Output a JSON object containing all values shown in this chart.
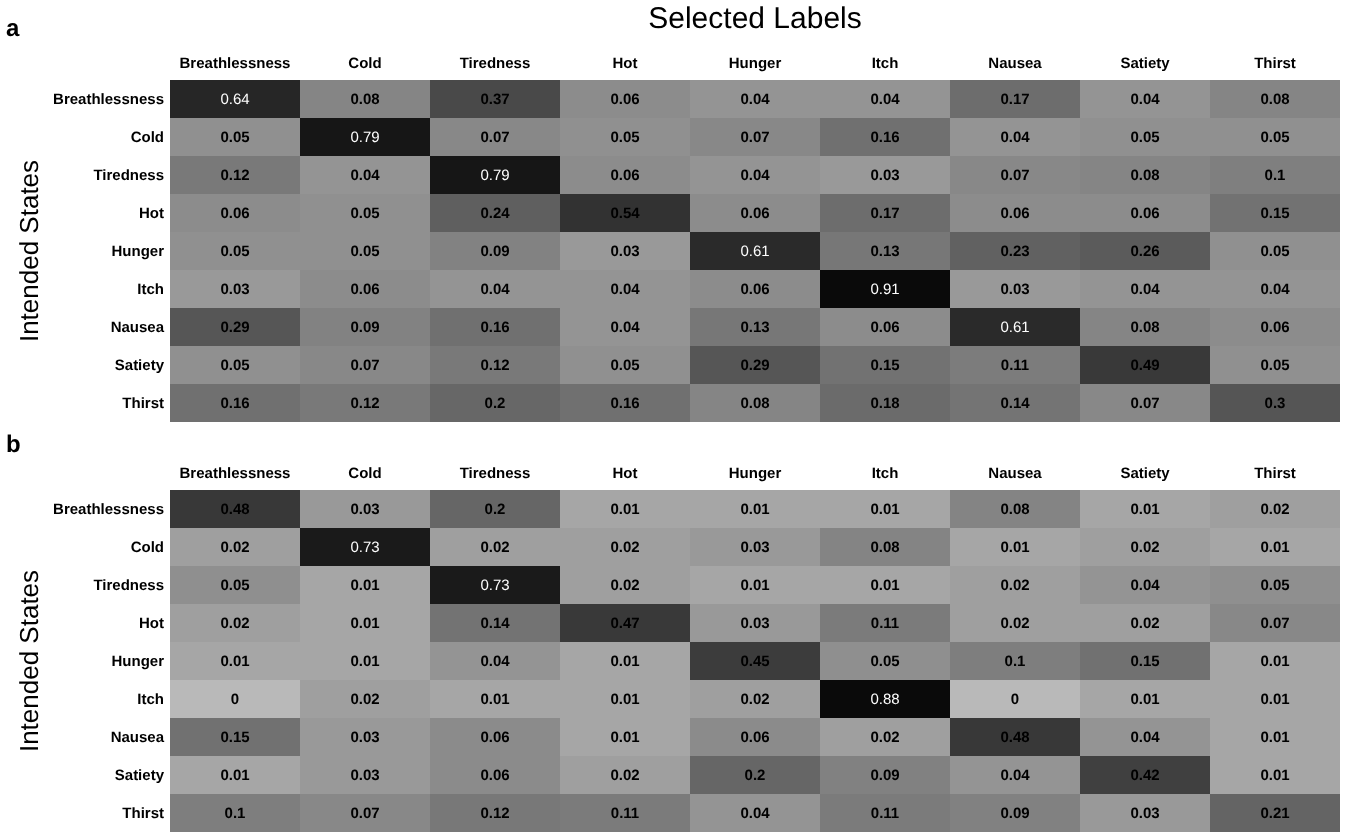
{
  "chart_data": [
    {
      "type": "heatmap",
      "title": "Selected Labels",
      "ylabel": "Intended States",
      "annotations": [
        "a"
      ],
      "categories": [
        "Breathlessness",
        "Cold",
        "Tiredness",
        "Hot",
        "Hunger",
        "Itch",
        "Nausea",
        "Satiety",
        "Thirst"
      ],
      "y_categories": [
        "Breathlessness",
        "Cold",
        "Tiredness",
        "Hot",
        "Hunger",
        "Itch",
        "Nausea",
        "Satiety",
        "Thirst"
      ],
      "data_labels": true,
      "cells": [
        [
          0.64,
          0.08,
          0.37,
          0.06,
          0.04,
          0.04,
          0.17,
          0.04,
          0.08
        ],
        [
          0.05,
          0.79,
          0.07,
          0.05,
          0.07,
          0.16,
          0.04,
          0.05,
          0.05
        ],
        [
          0.12,
          0.04,
          0.79,
          0.06,
          0.04,
          0.03,
          0.07,
          0.08,
          0.1
        ],
        [
          0.06,
          0.05,
          0.24,
          0.54,
          0.06,
          0.17,
          0.06,
          0.06,
          0.15
        ],
        [
          0.05,
          0.05,
          0.09,
          0.03,
          0.61,
          0.13,
          0.23,
          0.26,
          0.05
        ],
        [
          0.03,
          0.06,
          0.04,
          0.04,
          0.06,
          0.91,
          0.03,
          0.04,
          0.04
        ],
        [
          0.29,
          0.09,
          0.16,
          0.04,
          0.13,
          0.06,
          0.61,
          0.08,
          0.06
        ],
        [
          0.05,
          0.07,
          0.12,
          0.05,
          0.29,
          0.15,
          0.11,
          0.49,
          0.05
        ],
        [
          0.16,
          0.12,
          0.2,
          0.16,
          0.08,
          0.18,
          0.14,
          0.07,
          0.3
        ]
      ]
    },
    {
      "type": "heatmap",
      "ylabel": "Intended States",
      "annotations": [
        "b"
      ],
      "categories": [
        "Breathlessness",
        "Cold",
        "Tiredness",
        "Hot",
        "Hunger",
        "Itch",
        "Nausea",
        "Satiety",
        "Thirst"
      ],
      "y_categories": [
        "Breathlessness",
        "Cold",
        "Tiredness",
        "Hot",
        "Hunger",
        "Itch",
        "Nausea",
        "Satiety",
        "Thirst"
      ],
      "data_labels": true,
      "cells": [
        [
          0.48,
          0.03,
          0.2,
          0.01,
          0.01,
          0.01,
          0.08,
          0.01,
          0.02
        ],
        [
          0.02,
          0.73,
          0.02,
          0.02,
          0.03,
          0.08,
          0.01,
          0.02,
          0.01
        ],
        [
          0.05,
          0.01,
          0.73,
          0.02,
          0.01,
          0.01,
          0.02,
          0.04,
          0.05
        ],
        [
          0.02,
          0.01,
          0.14,
          0.47,
          0.03,
          0.11,
          0.02,
          0.02,
          0.07
        ],
        [
          0.01,
          0.01,
          0.04,
          0.01,
          0.45,
          0.05,
          0.1,
          0.15,
          0.01
        ],
        [
          0,
          0.02,
          0.01,
          0.01,
          0.02,
          0.88,
          0,
          0.01,
          0.01
        ],
        [
          0.15,
          0.03,
          0.06,
          0.01,
          0.06,
          0.02,
          0.48,
          0.04,
          0.01
        ],
        [
          0.01,
          0.03,
          0.06,
          0.02,
          0.2,
          0.09,
          0.04,
          0.42,
          0.01
        ],
        [
          0.1,
          0.07,
          0.12,
          0.11,
          0.04,
          0.11,
          0.09,
          0.03,
          0.21
        ]
      ]
    }
  ]
}
